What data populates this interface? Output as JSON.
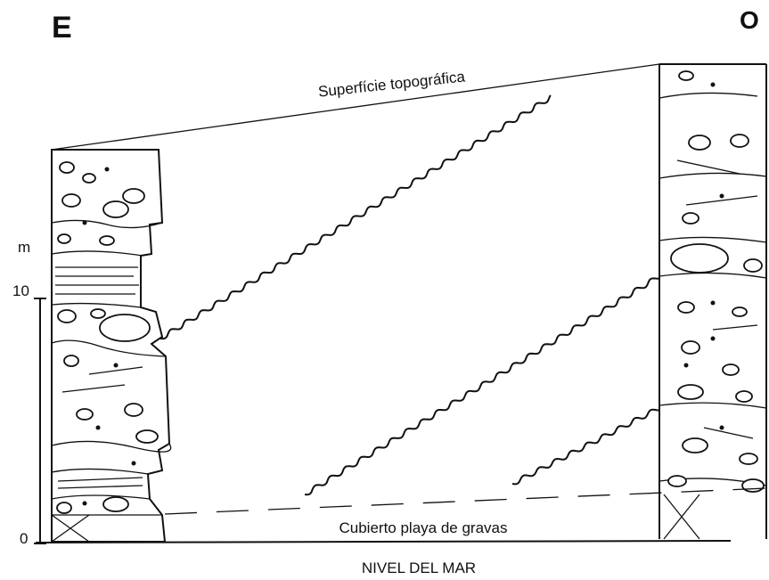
{
  "header": {
    "left": "E",
    "right": "O"
  },
  "labels": {
    "surface": "Superfície topográfica",
    "beach": "Cubierto playa de gravas",
    "sea_level": "NIVEL DEL MAR"
  },
  "scale": {
    "unit": "m",
    "ticks": [
      "10",
      "0"
    ]
  }
}
